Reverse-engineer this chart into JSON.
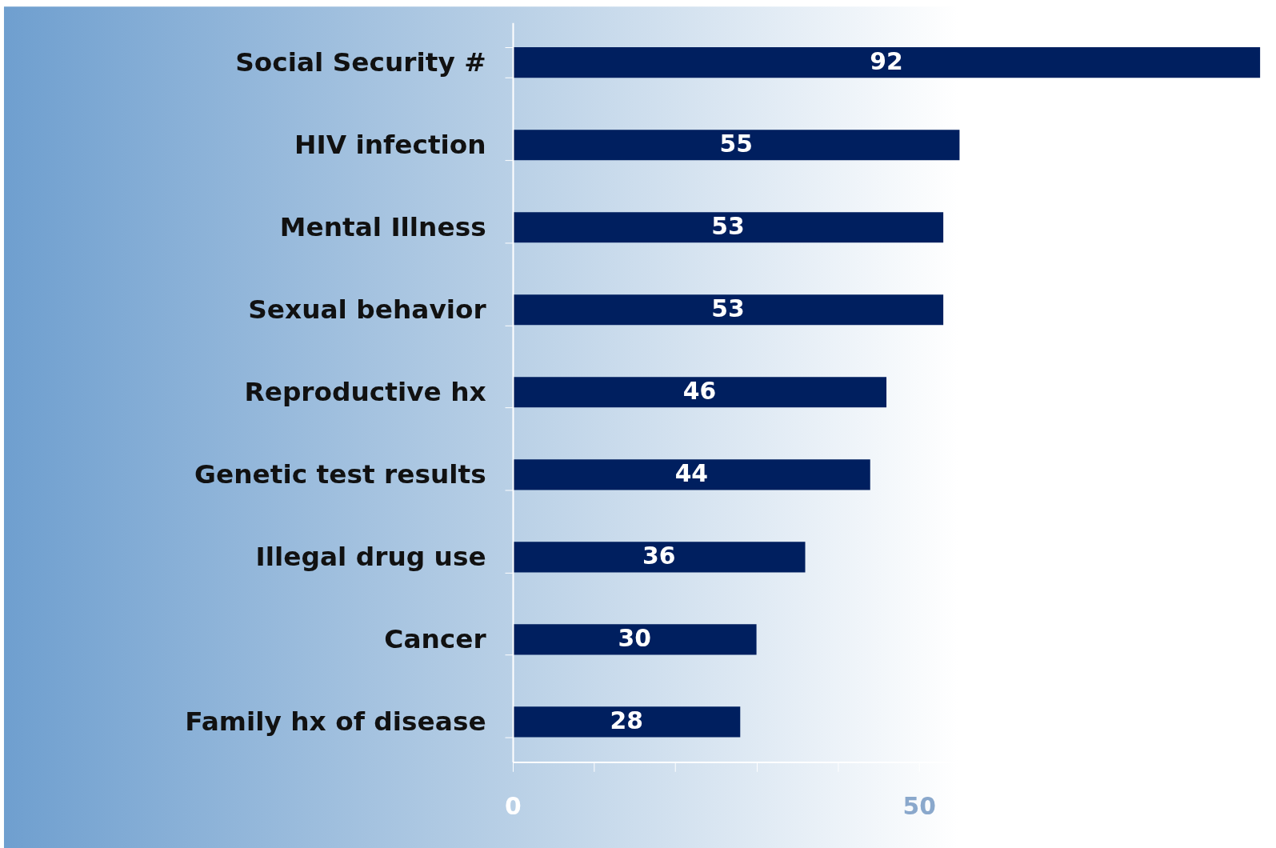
{
  "chart_data": {
    "type": "bar",
    "orientation": "horizontal",
    "categories": [
      "Social Security #",
      "HIV infection",
      "Mental Illness",
      "Sexual behavior",
      "Reproductive hx",
      "Genetic test results",
      "Illegal drug use",
      "Cancer",
      "Family hx of disease"
    ],
    "values": [
      92,
      55,
      53,
      53,
      46,
      44,
      36,
      30,
      28
    ],
    "color": "#001f5f",
    "data_labels": true,
    "xlim": [
      0,
      92
    ],
    "xticks": [
      0,
      {
        "value": 10,
        "label": null
      },
      {
        "value": 20,
        "label": null
      },
      {
        "value": 30,
        "label": null
      },
      {
        "value": 40,
        "label": null
      },
      50
    ],
    "grid": false
  }
}
